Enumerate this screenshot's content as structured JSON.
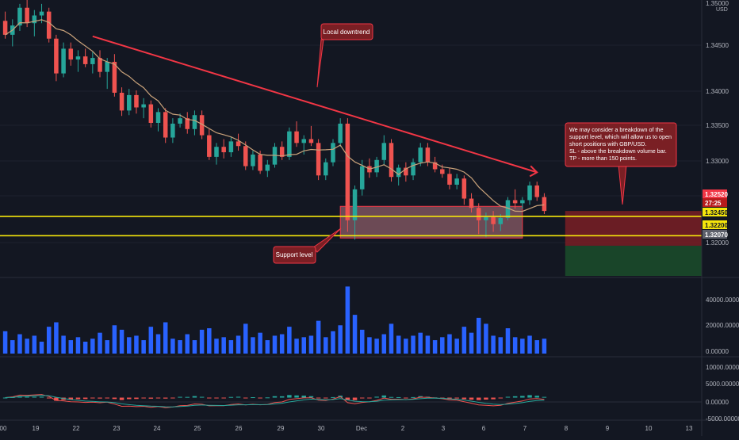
{
  "colors": {
    "background": "#131722",
    "bull": "#26a69a",
    "bear": "#ef5350",
    "volume": "#2962ff",
    "ma": "#c9a27a",
    "trendline": "#f23645",
    "support": "#f5e60b",
    "sl_zone": "#7a1f24",
    "tp_zone": "#1b4a2a",
    "axis_text": "#b2b5be",
    "grid": "#1e222d"
  },
  "price_axis": {
    "ticks": [
      "1.35000",
      "1.34500",
      "1.34000",
      "1.33500",
      "1.33000",
      "1.32000"
    ],
    "currency": "USD",
    "labels": {
      "sl_price": "1.32520",
      "countdown": "27:25",
      "entry_price": "1.32450",
      "support_price": "1.32200",
      "tp_price": "1.32070"
    }
  },
  "time_axis": {
    "ticks": [
      "00",
      "19",
      "22",
      "23",
      "24",
      "25",
      "26",
      "29",
      "30",
      "Dec",
      "2",
      "3",
      "6",
      "6",
      "7",
      "8",
      "9",
      "10",
      "13"
    ]
  },
  "volume_axis": {
    "ticks": [
      "40000.00000",
      "20000.00000",
      "0.00000"
    ]
  },
  "macd_axis": {
    "ticks": [
      "10000.00000",
      "5000.00000",
      "0.00000",
      "-5000.00000"
    ]
  },
  "annotations": {
    "trend": "Local downtrend",
    "support": "Support level",
    "idea": [
      "We may consider a breakdown of the",
      "support level, which will allow us to open",
      "short positions with GBP/USD.",
      "SL - above the breakdown volume bar.",
      "TP - more than 150 points."
    ]
  },
  "chart_data": {
    "type": "candlestick",
    "symbol": "GBP/USD",
    "x_range": [
      0,
      150
    ],
    "ylim": [
      1.3168,
      1.3525
    ],
    "support_levels": [
      1.3245,
      1.322
    ],
    "trendline": {
      "from": [
        12,
        1.3478
      ],
      "to": [
        73,
        1.3302
      ]
    },
    "support_zone": {
      "x": [
        46,
        71
      ],
      "y": [
        1.3217,
        1.3258
      ]
    },
    "sl_zone": {
      "x": [
        76,
        97
      ],
      "y": [
        1.3207,
        1.3252
      ]
    },
    "tp_zone": {
      "x": [
        76,
        97
      ],
      "y": [
        1.3168,
        1.3207
      ]
    },
    "ohlc": [
      [
        1.3498,
        1.351,
        1.3475,
        1.348
      ],
      [
        1.348,
        1.35,
        1.3465,
        1.3492
      ],
      [
        1.3492,
        1.352,
        1.3485,
        1.3515
      ],
      [
        1.3515,
        1.3525,
        1.349,
        1.3495
      ],
      [
        1.3495,
        1.3512,
        1.3478,
        1.3505
      ],
      [
        1.3505,
        1.352,
        1.3495,
        1.351
      ],
      [
        1.351,
        1.3515,
        1.347,
        1.3475
      ],
      [
        1.3475,
        1.348,
        1.342,
        1.343
      ],
      [
        1.343,
        1.347,
        1.3425,
        1.3462
      ],
      [
        1.3462,
        1.347,
        1.344,
        1.3448
      ],
      [
        1.3448,
        1.346,
        1.3432,
        1.3452
      ],
      [
        1.3452,
        1.3462,
        1.3438,
        1.3442
      ],
      [
        1.3442,
        1.3458,
        1.343,
        1.345
      ],
      [
        1.345,
        1.346,
        1.3425,
        1.3432
      ],
      [
        1.3432,
        1.345,
        1.341,
        1.3445
      ],
      [
        1.3445,
        1.3455,
        1.34,
        1.3405
      ],
      [
        1.3405,
        1.3412,
        1.3375,
        1.3382
      ],
      [
        1.3382,
        1.341,
        1.3376,
        1.3402
      ],
      [
        1.3402,
        1.3408,
        1.3378,
        1.3386
      ],
      [
        1.3386,
        1.3398,
        1.3372,
        1.339
      ],
      [
        1.339,
        1.3395,
        1.336,
        1.3366
      ],
      [
        1.3366,
        1.3385,
        1.3355,
        1.338
      ],
      [
        1.338,
        1.3385,
        1.334,
        1.3347
      ],
      [
        1.3347,
        1.3372,
        1.334,
        1.3365
      ],
      [
        1.3365,
        1.3378,
        1.336,
        1.3372
      ],
      [
        1.3372,
        1.338,
        1.3352,
        1.3358
      ],
      [
        1.3358,
        1.3382,
        1.335,
        1.3376
      ],
      [
        1.3376,
        1.3382,
        1.3345,
        1.335
      ],
      [
        1.335,
        1.3358,
        1.3318,
        1.3322
      ],
      [
        1.3322,
        1.334,
        1.3312,
        1.3335
      ],
      [
        1.3335,
        1.3345,
        1.332,
        1.3328
      ],
      [
        1.3328,
        1.3348,
        1.3322,
        1.3342
      ],
      [
        1.3342,
        1.3352,
        1.333,
        1.3336
      ],
      [
        1.3336,
        1.3342,
        1.3305,
        1.331
      ],
      [
        1.331,
        1.333,
        1.3305,
        1.3325
      ],
      [
        1.3325,
        1.333,
        1.33,
        1.3304
      ],
      [
        1.3304,
        1.3318,
        1.3296,
        1.3312
      ],
      [
        1.3312,
        1.334,
        1.3308,
        1.3335
      ],
      [
        1.3335,
        1.3342,
        1.3318,
        1.3322
      ],
      [
        1.3322,
        1.336,
        1.3318,
        1.3355
      ],
      [
        1.3355,
        1.3368,
        1.3335,
        1.334
      ],
      [
        1.334,
        1.335,
        1.3325,
        1.3345
      ],
      [
        1.3345,
        1.3362,
        1.3336,
        1.334
      ],
      [
        1.334,
        1.3345,
        1.3292,
        1.3298
      ],
      [
        1.3298,
        1.332,
        1.3292,
        1.3315
      ],
      [
        1.3315,
        1.3345,
        1.331,
        1.334
      ],
      [
        1.334,
        1.3372,
        1.3335,
        1.3365
      ],
      [
        1.3365,
        1.3372,
        1.3225,
        1.324
      ],
      [
        1.324,
        1.3285,
        1.3215,
        1.328
      ],
      [
        1.328,
        1.3318,
        1.3272,
        1.331
      ],
      [
        1.331,
        1.332,
        1.3295,
        1.3302
      ],
      [
        1.3302,
        1.3322,
        1.3296,
        1.3318
      ],
      [
        1.3318,
        1.335,
        1.3312,
        1.334
      ],
      [
        1.334,
        1.3345,
        1.329,
        1.3296
      ],
      [
        1.3296,
        1.3312,
        1.3285,
        1.3308
      ],
      [
        1.3308,
        1.3315,
        1.329,
        1.3298
      ],
      [
        1.3298,
        1.332,
        1.3292,
        1.3315
      ],
      [
        1.3315,
        1.334,
        1.331,
        1.3334
      ],
      [
        1.3334,
        1.334,
        1.331,
        1.3315
      ],
      [
        1.3315,
        1.3322,
        1.3302,
        1.3306
      ],
      [
        1.3306,
        1.3312,
        1.3295,
        1.33
      ],
      [
        1.33,
        1.3308,
        1.328,
        1.3286
      ],
      [
        1.3286,
        1.33,
        1.328,
        1.3294
      ],
      [
        1.3294,
        1.3298,
        1.326,
        1.3268
      ],
      [
        1.3268,
        1.3275,
        1.325,
        1.3256
      ],
      [
        1.3256,
        1.3262,
        1.3222,
        1.324
      ],
      [
        1.324,
        1.325,
        1.3218,
        1.3244
      ],
      [
        1.3244,
        1.3252,
        1.3225,
        1.3235
      ],
      [
        1.3235,
        1.3248,
        1.3226,
        1.3243
      ],
      [
        1.3243,
        1.327,
        1.324,
        1.3266
      ],
      [
        1.3266,
        1.328,
        1.3255,
        1.3262
      ],
      [
        1.3262,
        1.327,
        1.3255,
        1.3266
      ],
      [
        1.3266,
        1.329,
        1.326,
        1.3285
      ],
      [
        1.3285,
        1.329,
        1.3265,
        1.327
      ],
      [
        1.327,
        1.3275,
        1.3248,
        1.3252
      ]
    ],
    "volume": [
      15000,
      9000,
      13000,
      10000,
      12000,
      8000,
      18000,
      21000,
      12000,
      9000,
      11000,
      8000,
      10000,
      14000,
      9000,
      19000,
      16000,
      11000,
      12000,
      9000,
      18000,
      13000,
      21000,
      10000,
      9000,
      13000,
      9000,
      16000,
      17000,
      10000,
      11000,
      9000,
      12000,
      20000,
      11000,
      14000,
      9000,
      12000,
      13000,
      18000,
      10000,
      11000,
      12000,
      22000,
      11000,
      15000,
      19000,
      45000,
      26000,
      16000,
      11000,
      10000,
      13000,
      20000,
      12000,
      10000,
      12000,
      14000,
      12000,
      9000,
      11000,
      13000,
      10000,
      18000,
      14000,
      24000,
      20000,
      12000,
      11000,
      17000,
      11000,
      10000,
      12000,
      9000,
      10000
    ],
    "volume_ylim": [
      0,
      50000
    ],
    "macd_ylim": [
      -6000,
      11000
    ]
  }
}
